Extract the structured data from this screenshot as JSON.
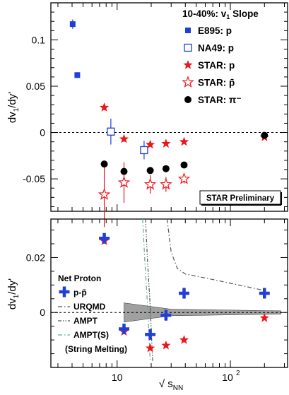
{
  "chart_data": [
    {
      "type": "scatter",
      "title": "10-40%: v₁ Slope",
      "ylabel": "dv₁/dy'",
      "xscale": "log",
      "xlim": [
        2.6,
        320
      ],
      "ylim": [
        -0.085,
        0.14
      ],
      "grid": false,
      "zero_line": "dashed",
      "legend_position": "top-right",
      "annotation": "STAR Preliminary",
      "ytick_values": [
        -0.05,
        0,
        0.05,
        0.1
      ],
      "ytick_labels": [
        "-0.05",
        "0",
        "0.05",
        "0.1"
      ],
      "series": [
        {
          "name": "E895: p",
          "marker": "square-filled",
          "color": "#1f3fd6",
          "points": [
            {
              "x": 4.05,
              "y": 0.117,
              "err": 0.005
            },
            {
              "x": 4.45,
              "y": 0.062,
              "err": 0.003
            }
          ]
        },
        {
          "name": "NA49: p",
          "marker": "square-open",
          "color": "#1f3fd6",
          "points": [
            {
              "x": 8.8,
              "y": 0.001,
              "err": 0.014
            },
            {
              "x": 17.3,
              "y": -0.019,
              "err": 0.01
            }
          ]
        },
        {
          "name": "STAR: p",
          "marker": "star-filled",
          "color": "#e8181c",
          "points": [
            {
              "x": 7.7,
              "y": 0.027,
              "err": 0.003
            },
            {
              "x": 11.5,
              "y": -0.007,
              "err": 0.003
            },
            {
              "x": 19.6,
              "y": -0.013,
              "err": 0.002
            },
            {
              "x": 27,
              "y": -0.012,
              "err": 0.002
            },
            {
              "x": 39,
              "y": -0.01,
              "err": 0.002
            },
            {
              "x": 200,
              "y": -0.005,
              "err": 0.001
            }
          ]
        },
        {
          "name": "STAR: p̄",
          "marker": "star-open",
          "color": "#e8181c",
          "points": [
            {
              "x": 7.7,
              "y": -0.067,
              "err": 0.035
            },
            {
              "x": 11.5,
              "y": -0.054,
              "err": 0.022
            },
            {
              "x": 19.6,
              "y": -0.056,
              "err": 0.01
            },
            {
              "x": 27,
              "y": -0.056,
              "err": 0.008
            },
            {
              "x": 39,
              "y": -0.05,
              "err": 0.005
            }
          ]
        },
        {
          "name": "STAR: π⁻",
          "marker": "circle-filled",
          "color": "#000000",
          "points": [
            {
              "x": 7.7,
              "y": -0.034,
              "err": 0.0
            },
            {
              "x": 11.5,
              "y": -0.042,
              "err": 0.0
            },
            {
              "x": 19.6,
              "y": -0.041,
              "err": 0.0
            },
            {
              "x": 27,
              "y": -0.039,
              "err": 0.0
            },
            {
              "x": 39,
              "y": -0.035,
              "err": 0.0
            },
            {
              "x": 200,
              "y": -0.003,
              "err": 0.0
            }
          ]
        }
      ]
    },
    {
      "type": "scatter",
      "ylabel": "dv₁/dy'",
      "xlabel": "√ s_NN",
      "xscale": "log",
      "xlim": [
        2.6,
        320
      ],
      "ylim": [
        -0.02,
        0.034
      ],
      "grid": false,
      "zero_line": "dashed",
      "legend_position": "bottom-left",
      "legend_title": "Net Proton",
      "ytick_values": [
        0,
        0.02
      ],
      "ytick_labels": [
        "0",
        "0.02"
      ],
      "xtick_labels": [
        {
          "value": 10,
          "label": "10"
        },
        {
          "value": 100,
          "base": "10",
          "exp": "2"
        }
      ],
      "series": [
        {
          "name": "p-p̄",
          "marker": "cross-filled",
          "color": "#1f3fd6",
          "points": [
            {
              "x": 7.7,
              "y": 0.027,
              "err": 0.001
            },
            {
              "x": 11.5,
              "y": -0.006,
              "err": 0.001
            },
            {
              "x": 19.6,
              "y": -0.008,
              "err": 0.001
            },
            {
              "x": 27,
              "y": -0.001,
              "err": 0.002
            },
            {
              "x": 39,
              "y": 0.007,
              "err": 0.002
            },
            {
              "x": 200,
              "y": 0.007,
              "err": 0.001
            }
          ]
        },
        {
          "name": "STAR: p",
          "marker": "star-filled",
          "color": "#e8181c",
          "in_legend": false,
          "points": [
            {
              "x": 7.7,
              "y": 0.026,
              "err": 0.0
            },
            {
              "x": 11.5,
              "y": -0.007,
              "err": 0.0
            },
            {
              "x": 19.6,
              "y": -0.013,
              "err": 0.0
            },
            {
              "x": 27,
              "y": -0.012,
              "err": 0.0
            },
            {
              "x": 39,
              "y": -0.01,
              "err": 0.0
            },
            {
              "x": 200,
              "y": -0.002,
              "err": 0.0
            }
          ]
        }
      ],
      "models": [
        {
          "name": "URQMD",
          "dash": "dash-dot",
          "color": "#555555",
          "points": [
            {
              "x": 27.6,
              "y": 0.034
            },
            {
              "x": 30,
              "y": 0.022
            },
            {
              "x": 34,
              "y": 0.016
            },
            {
              "x": 40,
              "y": 0.014
            },
            {
              "x": 70,
              "y": 0.012
            },
            {
              "x": 200,
              "y": 0.008
            }
          ]
        },
        {
          "name": "AMPT",
          "dash": "dash-dot-dot",
          "color": "#555555",
          "points": [
            {
              "x": 17.8,
              "y": 0.034
            },
            {
              "x": 18.6,
              "y": 0.018
            },
            {
              "x": 19.6,
              "y": 0.002
            },
            {
              "x": 20.6,
              "y": -0.018
            }
          ]
        },
        {
          "name": "AMPT(S)",
          "dash": "dash-dot",
          "color": "#5fa899",
          "points": [
            {
              "x": 16.8,
              "y": 0.034
            },
            {
              "x": 17.6,
              "y": 0.018
            },
            {
              "x": 18.6,
              "y": 0.002
            },
            {
              "x": 19.6,
              "y": -0.018
            }
          ]
        }
      ],
      "model_label_extra": "(String Melting)",
      "band": {
        "color": "#808080",
        "points": [
          {
            "x": 11.5,
            "y_low": -0.0035,
            "y_high": 0.0035
          },
          {
            "x": 30,
            "y_low": -0.0012,
            "y_high": 0.0012
          },
          {
            "x": 280,
            "y_low": -0.0006,
            "y_high": 0.0006
          }
        ]
      }
    }
  ]
}
